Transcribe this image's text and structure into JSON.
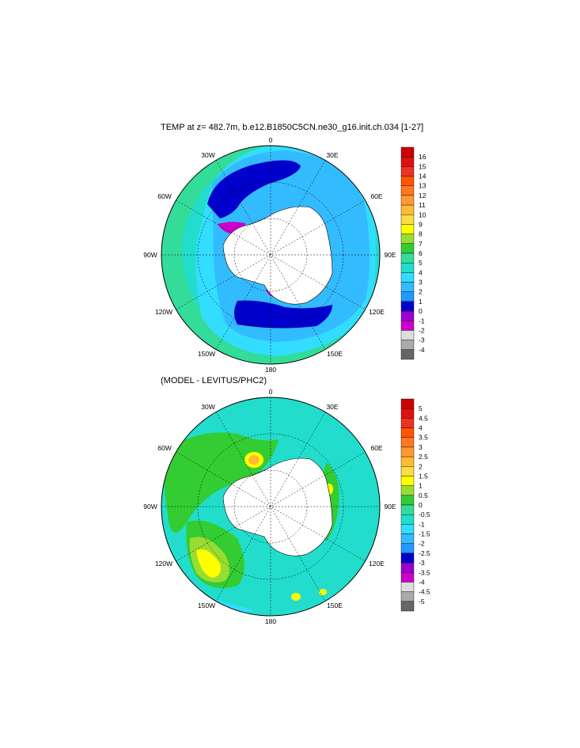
{
  "panels": [
    {
      "title": "TEMP at z= 482.7m, b.e12.B1850C5CN.ne30_g16.init.ch.034 [1-27]",
      "longitude_labels": [
        "0",
        "30E",
        "60E",
        "90E",
        "120E",
        "150E",
        "180",
        "150W",
        "120W",
        "90W",
        "60W",
        "30W"
      ],
      "colorbar": {
        "levels": [
          "16",
          "15",
          "14",
          "13",
          "12",
          "11",
          "10",
          "9",
          "8",
          "7",
          "6",
          "5",
          "4",
          "3",
          "2",
          "1",
          "0",
          "-1",
          "-2",
          "-3",
          "-4"
        ],
        "colors": [
          "#cc0000",
          "#dd1111",
          "#ee3322",
          "#ff5500",
          "#ff7722",
          "#ff9933",
          "#ffbb33",
          "#ffdd44",
          "#ffff00",
          "#99dd33",
          "#33cc33",
          "#33dd99",
          "#22ddcc",
          "#33ddff",
          "#33bbff",
          "#2299ff",
          "#0000cc",
          "#9900cc",
          "#cc00cc",
          "#dddddd",
          "#aaaaaa",
          "#666666"
        ]
      }
    },
    {
      "title": "(MODEL - LEVITUS/PHC2)",
      "longitude_labels": [
        "0",
        "30E",
        "60E",
        "90E",
        "120E",
        "150E",
        "180",
        "150W",
        "120W",
        "90W",
        "60W",
        "30W"
      ],
      "colorbar": {
        "levels": [
          "5",
          "4.5",
          "4",
          "3.5",
          "3",
          "2.5",
          "2",
          "1.5",
          "1",
          "0.5",
          "0",
          "-0.5",
          "-1",
          "-1.5",
          "-2",
          "-2.5",
          "-3",
          "-3.5",
          "-4",
          "-4.5",
          "-5"
        ],
        "colors": [
          "#cc0000",
          "#dd1111",
          "#ee3322",
          "#ff5500",
          "#ff7722",
          "#ff9933",
          "#ffbb33",
          "#ffdd44",
          "#ffff00",
          "#99dd33",
          "#33cc33",
          "#33dd99",
          "#22ddcc",
          "#33ddff",
          "#33bbff",
          "#2299ff",
          "#0000cc",
          "#9900cc",
          "#cc00cc",
          "#dddddd",
          "#aaaaaa",
          "#666666"
        ]
      }
    }
  ]
}
